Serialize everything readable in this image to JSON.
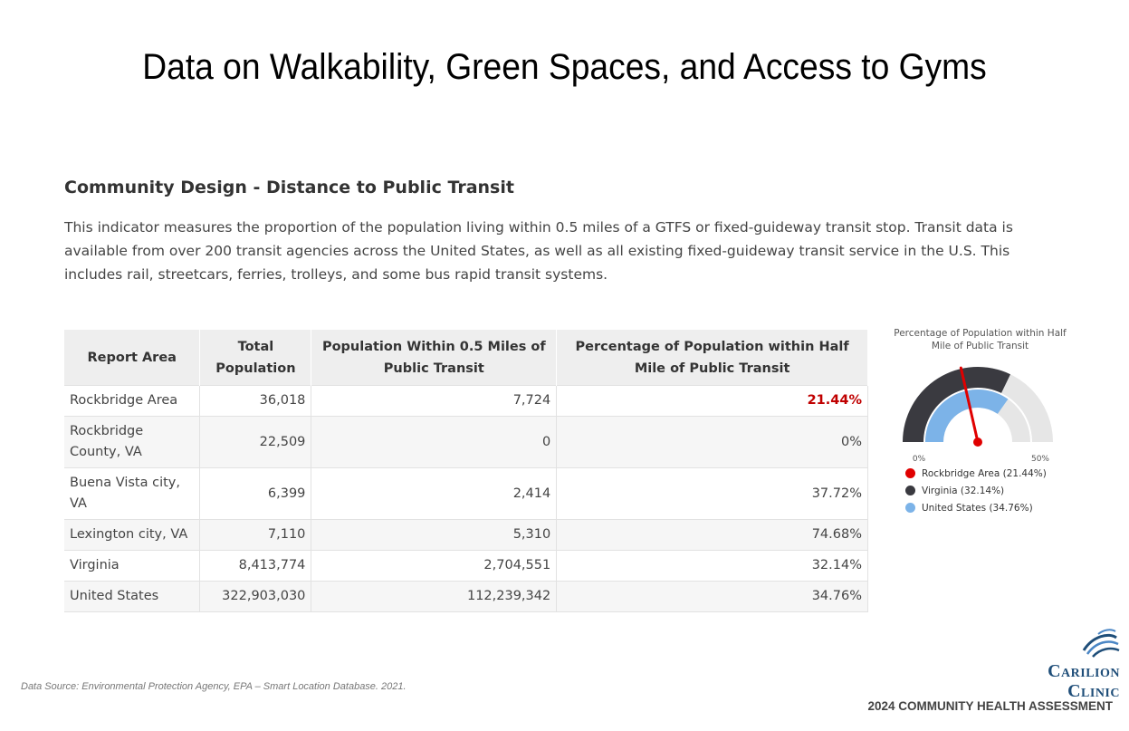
{
  "slide": {
    "title": "Data on Walkability, Green Spaces, and Access to Gyms"
  },
  "section": {
    "title": "Community Design - Distance to Public Transit",
    "description": "This indicator measures the proportion of the population living within 0.5 miles of a GTFS or fixed-guideway transit stop. Transit data is available from over 200 transit agencies across the United States, as well as all existing fixed-guideway transit service in the U.S. This includes rail, streetcars, ferries, trolleys, and some bus rapid transit systems."
  },
  "table": {
    "headers": [
      "Report Area",
      "Total Population",
      "Population Within 0.5 Miles of Public Transit",
      "Percentage of Population within Half Mile of Public Transit"
    ],
    "rows": [
      {
        "area": "Rockbridge Area",
        "total": "36,018",
        "within": "7,724",
        "pct": "21.44%"
      },
      {
        "area": "Rockbridge County, VA",
        "total": "22,509",
        "within": "0",
        "pct": "0%"
      },
      {
        "area": "Buena Vista city, VA",
        "total": "6,399",
        "within": "2,414",
        "pct": "37.72%"
      },
      {
        "area": "Lexington city, VA",
        "total": "7,110",
        "within": "5,310",
        "pct": "74.68%"
      },
      {
        "area": "Virginia",
        "total": "8,413,774",
        "within": "2,704,551",
        "pct": "32.14%"
      },
      {
        "area": "United States",
        "total": "322,903,030",
        "within": "112,239,342",
        "pct": "34.76%"
      }
    ]
  },
  "chart_data": {
    "type": "gauge",
    "title": "Percentage of Population within Half Mile of Public Transit",
    "range": [
      0,
      50
    ],
    "tick_labels": [
      "0%",
      "50%"
    ],
    "series": [
      {
        "name": "Rockbridge Area",
        "value": 21.44,
        "label": "Rockbridge Area (21.44%)",
        "color": "#e00000",
        "mark": "needle"
      },
      {
        "name": "Virginia",
        "value": 32.14,
        "label": "Virginia (32.14%)",
        "color": "#3a3a40",
        "mark": "outer-arc"
      },
      {
        "name": "United States",
        "value": 34.76,
        "label": "United States (34.76%)",
        "color": "#7cb3e8",
        "mark": "inner-arc"
      }
    ],
    "track_color": "#e6e6e6"
  },
  "footer": {
    "source": "Data Source: Environmental Protection Agency, EPA – Smart Location Database. 2021.",
    "logo_line1": "Carilion",
    "logo_line2": "Clinic",
    "assessment": "2024 COMMUNITY HEALTH ASSESSMENT"
  }
}
